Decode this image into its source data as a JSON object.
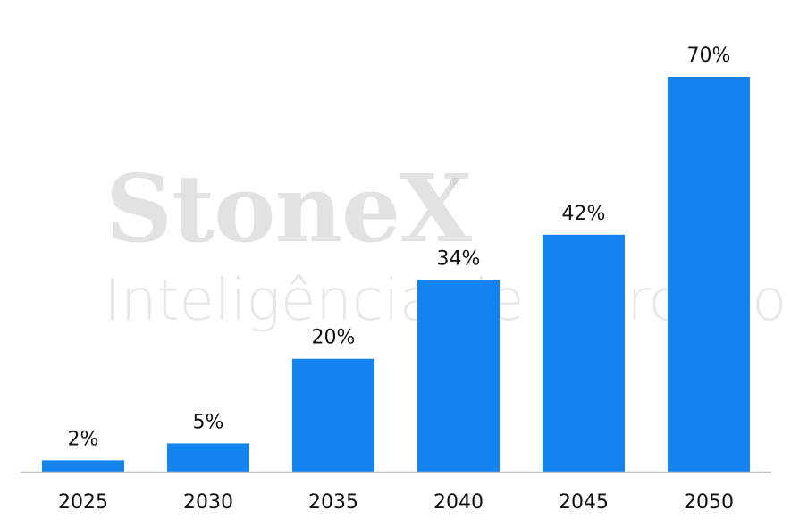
{
  "watermark": {
    "brand": "StoneX",
    "registered_mark": "®",
    "tagline": "Inteligência de Mercado"
  },
  "chart_data": {
    "type": "bar",
    "categories": [
      "2025",
      "2030",
      "2035",
      "2040",
      "2045",
      "2050"
    ],
    "values": [
      2,
      5,
      20,
      34,
      42,
      70
    ],
    "value_labels": [
      "2%",
      "5%",
      "20%",
      "34%",
      "42%",
      "70%"
    ],
    "title": "",
    "xlabel": "",
    "ylabel": "",
    "ylim": [
      0,
      70
    ],
    "grid": false,
    "legend": "none",
    "bar_color": "#1483F0",
    "axis_color": "#BFBFBF"
  }
}
